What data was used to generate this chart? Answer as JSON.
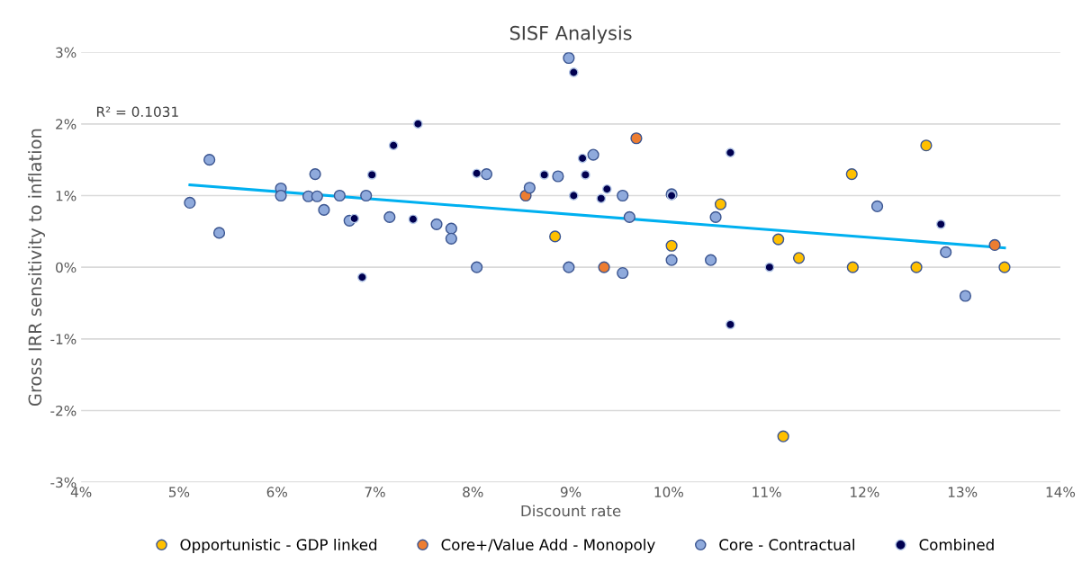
{
  "chart_data": {
    "type": "scatter",
    "title": "SISF Analysis",
    "xlabel": "Discount rate",
    "ylabel": "Gross IRR sensitivity to inflation",
    "annotations": [
      "R² = 0.1031"
    ],
    "xlim": [
      4,
      14
    ],
    "ylim": [
      -3,
      3
    ],
    "xticks": [
      {
        "value": 4,
        "label": "4%"
      },
      {
        "value": 5,
        "label": "5%"
      },
      {
        "value": 6,
        "label": "6%"
      },
      {
        "value": 7,
        "label": "7%"
      },
      {
        "value": 8,
        "label": "8%"
      },
      {
        "value": 9,
        "label": "9%"
      },
      {
        "value": 10,
        "label": "10%"
      },
      {
        "value": 11,
        "label": "11%"
      },
      {
        "value": 12,
        "label": "12%"
      },
      {
        "value": 13,
        "label": "13%"
      },
      {
        "value": 14,
        "label": "14%"
      }
    ],
    "yticks": [
      {
        "value": -3,
        "label": "-3%"
      },
      {
        "value": -2,
        "label": "-2%"
      },
      {
        "value": -1,
        "label": "-1%"
      },
      {
        "value": 0,
        "label": "0%"
      },
      {
        "value": 1,
        "label": "1%"
      },
      {
        "value": 2,
        "label": "2%"
      },
      {
        "value": 3,
        "label": "3%"
      }
    ],
    "grid": "y",
    "legend": "bottom",
    "marker": "circle",
    "series": [
      {
        "name": "Opportunistic - GDP linked",
        "color": "#ffc000",
        "x": [
          8.84,
          10.03,
          10.53,
          11.12,
          11.33,
          11.17,
          11.87,
          11.88,
          12.63,
          12.53,
          13.43
        ],
        "values": [
          0.43,
          0.3,
          0.88,
          0.39,
          0.13,
          -2.36,
          1.3,
          0,
          1.7,
          0,
          0
        ]
      },
      {
        "name": "Core+/Value Add - Monopoly",
        "color": "#ed7d31",
        "x": [
          8.54,
          9.67,
          9.34,
          13.33
        ],
        "values": [
          1.0,
          1.8,
          0,
          0.31
        ]
      },
      {
        "name": "Core - Contractual",
        "color": "#8faadc",
        "x": [
          5.11,
          5.31,
          5.41,
          6.04,
          6.04,
          6.32,
          6.39,
          6.41,
          6.48,
          6.64,
          6.74,
          6.91,
          7.15,
          7.63,
          7.78,
          7.78,
          8.14,
          8.04,
          8.98,
          8.58,
          8.87,
          9.23,
          9.53,
          9.6,
          10.03,
          10.03,
          10.43,
          10.48,
          8.98,
          9.53,
          12.13,
          12.83,
          13.03
        ],
        "values": [
          0.9,
          1.5,
          0.48,
          1.1,
          1.0,
          0.99,
          1.3,
          0.99,
          0.8,
          1.0,
          0.65,
          1.0,
          0.7,
          0.6,
          0.54,
          0.4,
          1.3,
          0,
          2.92,
          1.11,
          1.27,
          1.57,
          1.0,
          0.7,
          1.02,
          0.1,
          0.1,
          0.7,
          0,
          -0.08,
          0.85,
          0.21,
          -0.4
        ]
      },
      {
        "name": "Combined",
        "color": "#000050",
        "x": [
          6.79,
          6.87,
          6.97,
          7.19,
          7.39,
          7.44,
          8.04,
          9.03,
          8.73,
          9.03,
          9.12,
          9.15,
          9.31,
          9.37,
          10.03,
          10.63,
          11.03,
          10.63,
          12.78
        ],
        "values": [
          0.68,
          -0.14,
          1.29,
          1.7,
          0.67,
          2.0,
          1.31,
          2.72,
          1.29,
          1.0,
          1.52,
          1.29,
          0.96,
          1.09,
          1.0,
          1.6,
          0,
          -0.8,
          0.6
        ]
      },
      {
        "type": "line",
        "marker": "none",
        "color": "#00b0f0",
        "x": [
          5.11,
          13.43
        ],
        "values": [
          1.15,
          0.27
        ]
      }
    ]
  }
}
